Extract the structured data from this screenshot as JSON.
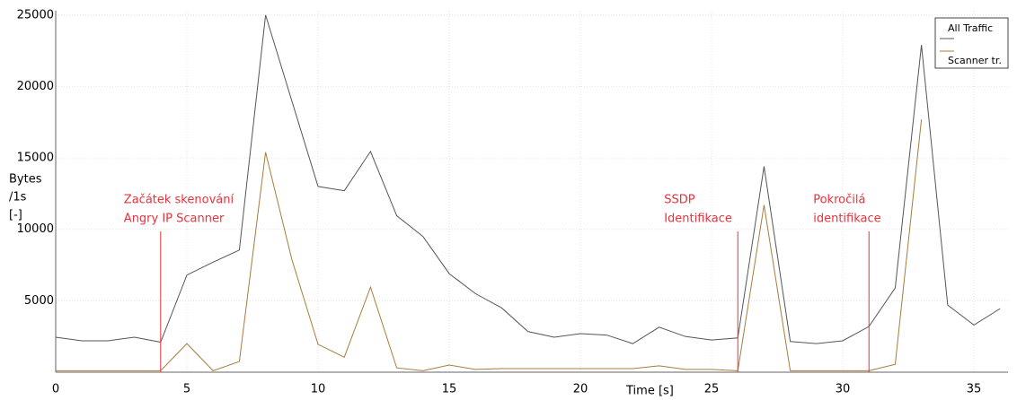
{
  "chart_data": {
    "type": "line",
    "y_label": [
      "Bytes",
      "/1s",
      "[-]"
    ],
    "x_label": "Time [s]",
    "x": [
      0,
      1,
      2,
      3,
      4,
      5,
      6,
      7,
      8,
      9,
      10,
      11,
      12,
      13,
      14,
      15,
      16,
      17,
      18,
      19,
      20,
      21,
      22,
      23,
      24,
      25,
      26,
      27,
      28,
      29,
      30,
      31,
      32,
      33,
      34,
      35,
      36
    ],
    "series": [
      {
        "name": "All Traffic",
        "color": "#555555",
        "values": [
          2450,
          2200,
          2200,
          2450,
          2100,
          6800,
          7700,
          8550,
          25000,
          19000,
          13000,
          12700,
          15450,
          10950,
          9500,
          6900,
          5500,
          4500,
          2850,
          2450,
          2700,
          2600,
          2000,
          3150,
          2500,
          2250,
          2400,
          14400,
          2150,
          2000,
          2200,
          3200,
          5900,
          22900,
          4700,
          3300,
          4450
        ]
      },
      {
        "name": "Scanner tr.",
        "color": "#a87c3a",
        "values": [
          100,
          100,
          100,
          100,
          100,
          2000,
          100,
          750,
          15400,
          7900,
          1950,
          1050,
          5950,
          300,
          100,
          500,
          200,
          250,
          250,
          250,
          250,
          250,
          250,
          450,
          200,
          200,
          100,
          11700,
          100,
          100,
          100,
          100,
          550,
          17700,
          null,
          null,
          null
        ]
      }
    ],
    "annotations": [
      {
        "x": 4,
        "text": [
          "Začátek skenování",
          "Angry IP Scanner"
        ]
      },
      {
        "x": 26,
        "text": [
          "SSDP",
          "Identifikace"
        ]
      },
      {
        "x": 31,
        "text": [
          "Pokročilá",
          "identifikace"
        ]
      }
    ],
    "xlim": [
      0,
      36.3
    ],
    "ylim": [
      0,
      25300
    ],
    "xticks": [
      0,
      5,
      10,
      15,
      20,
      25,
      30,
      35
    ],
    "yticks": [
      5000,
      10000,
      15000,
      20000,
      25000
    ],
    "grid": true,
    "legend": "upper right"
  }
}
